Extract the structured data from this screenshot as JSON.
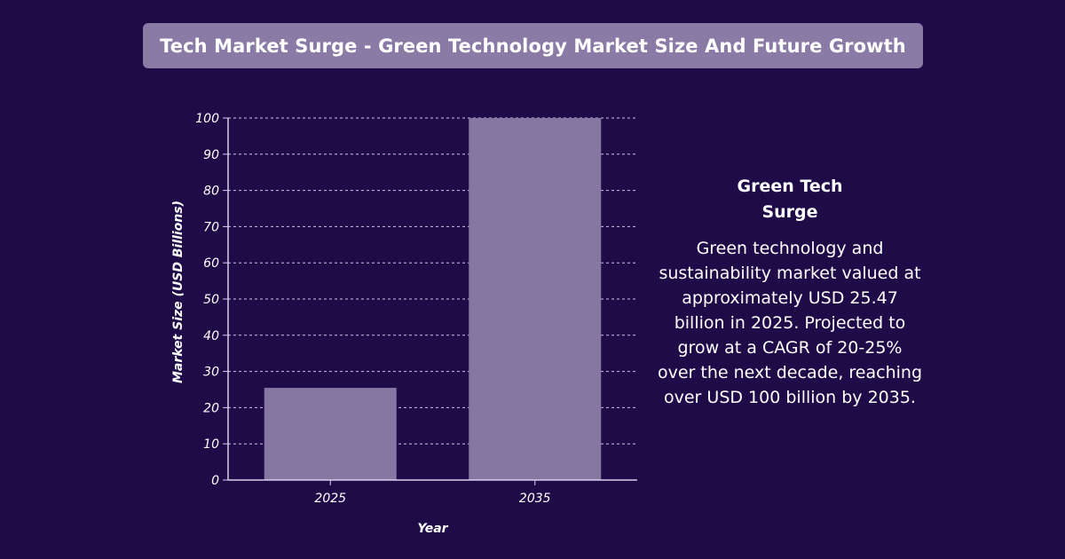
{
  "header": {
    "title": "Tech Market Surge - Green Technology Market Size And Future Growth"
  },
  "side_panel": {
    "heading": "Green Tech Surge",
    "body": "Green technology and sustainability market valued at approximately USD 25.47 billion in 2025. Projected to grow at a CAGR of 20-25% over the next decade, reaching over USD 100 billion by 2035."
  },
  "colors": {
    "background": "#1f0b48",
    "title_bar": "#8a7ba6",
    "bar": "#8478a3",
    "text": "#ffffff"
  },
  "chart_data": {
    "type": "bar",
    "title": "Tech Market Surge - Green Technology Market Size And Future Growth",
    "categories": [
      "2025",
      "2035"
    ],
    "values": [
      25.47,
      100
    ],
    "xlabel": "Year",
    "ylabel": "Market Size (USD Billions)",
    "ylim": [
      0,
      100
    ],
    "yticks": [
      0,
      10,
      20,
      30,
      40,
      50,
      60,
      70,
      80,
      90,
      100
    ],
    "grid": true,
    "grid_style": "dashed"
  }
}
